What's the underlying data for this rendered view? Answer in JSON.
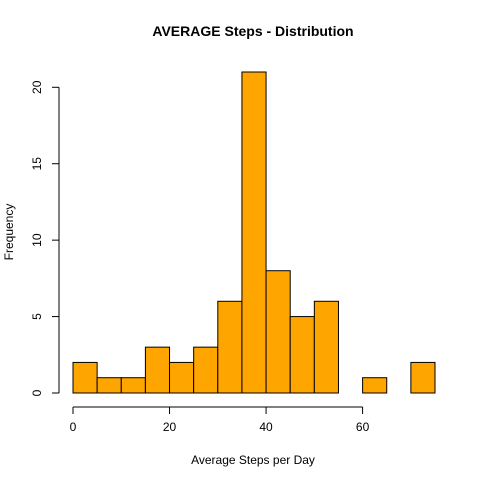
{
  "chart_data": {
    "type": "bar",
    "subtype": "histogram",
    "title": "AVERAGE Steps - Distribution",
    "xlabel": "Average Steps per Day",
    "ylabel": "Frequency",
    "bin_edges": [
      0,
      5,
      10,
      15,
      20,
      25,
      30,
      35,
      40,
      45,
      50,
      55,
      60,
      65,
      70,
      75
    ],
    "values": [
      2,
      1,
      1,
      3,
      2,
      3,
      6,
      21,
      8,
      5,
      6,
      0,
      1,
      0,
      2
    ],
    "xlim": [
      0,
      75
    ],
    "ylim": [
      0,
      21
    ],
    "x_ticks": [
      0,
      20,
      40,
      60
    ],
    "y_ticks": [
      0,
      5,
      10,
      15,
      20
    ],
    "bar_color": "#FFA500",
    "edge_color": "#000000",
    "grid": false,
    "legend": "none"
  }
}
